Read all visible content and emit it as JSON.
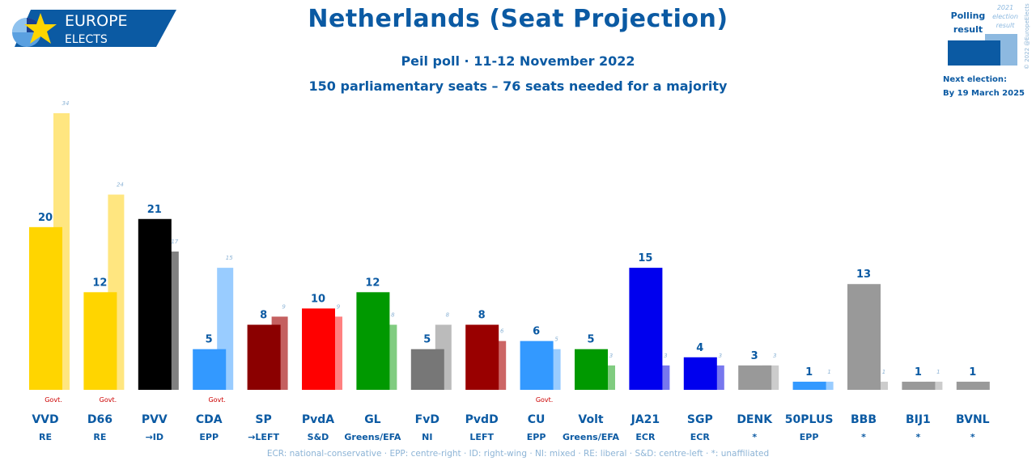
{
  "logo": {
    "line1": "EUROPE",
    "line2": "ELECTS"
  },
  "title": "Netherlands (Seat Projection)",
  "subtitle": "Peil poll · 11-12 November 2022",
  "subtitle2": "150 parliamentary seats – 76 seats needed for a majority",
  "legend": {
    "polling_label_line1": "Polling",
    "polling_label_line2": "result",
    "election_label_line1": "2021",
    "election_label_line2": "election",
    "election_label_line3": "result",
    "copyright": "© 2022 @EuropeElects",
    "next_election_label": "Next election:",
    "next_election_date": "By 19 March 2025",
    "polling_color": "#0b5aa3",
    "election_color": "#8db9e0"
  },
  "govt_label": "Govt.",
  "footnote": "ECR: national-conservative · EPP: centre-right · ID: right-wing · NI: mixed · RE: liberal · S&D: centre-left · *: unaffiliated",
  "chart_data": {
    "type": "bar",
    "ylim": [
      0,
      34
    ],
    "categories": [
      "VVD",
      "D66",
      "PVV",
      "CDA",
      "SP",
      "PvdA",
      "GL",
      "FvD",
      "PvdD",
      "CU",
      "Volt",
      "JA21",
      "SGP",
      "DENK",
      "50PLUS",
      "BBB",
      "BIJ1",
      "BVNL"
    ],
    "groups": [
      "RE",
      "RE",
      "→ID",
      "EPP",
      "→LEFT",
      "S&D",
      "Greens/EFA",
      "NI",
      "LEFT",
      "EPP",
      "Greens/EFA",
      "ECR",
      "ECR",
      "*",
      "EPP",
      "*",
      "*",
      "*"
    ],
    "government": [
      true,
      true,
      false,
      true,
      false,
      false,
      false,
      false,
      false,
      true,
      false,
      false,
      false,
      false,
      false,
      false,
      false,
      false
    ],
    "series": [
      {
        "name": "Polling result",
        "values": [
          20,
          12,
          21,
          5,
          8,
          10,
          12,
          5,
          8,
          6,
          5,
          15,
          4,
          3,
          1,
          13,
          1,
          1
        ]
      },
      {
        "name": "2021 election result",
        "values": [
          34,
          24,
          17,
          15,
          9,
          9,
          8,
          8,
          6,
          5,
          3,
          3,
          3,
          3,
          1,
          1,
          1,
          null
        ]
      }
    ],
    "colors": [
      "#ffd500",
      "#ffd500",
      "#000000",
      "#3399ff",
      "#8b0000",
      "#ff0000",
      "#009900",
      "#777777",
      "#990000",
      "#3399ff",
      "#009900",
      "#0000ee",
      "#0000ee",
      "#999999",
      "#3399ff",
      "#999999",
      "#999999",
      "#999999"
    ],
    "light_colors": [
      "#ffe680",
      "#ffe680",
      "#808080",
      "#99ccff",
      "#c46060",
      "#ff8080",
      "#80cc80",
      "#bbbbbb",
      "#cc6666",
      "#99ccff",
      "#80cc80",
      "#7777ee",
      "#7777ee",
      "#cccccc",
      "#99ccff",
      "#cccccc",
      "#cccccc",
      "#cccccc"
    ]
  }
}
